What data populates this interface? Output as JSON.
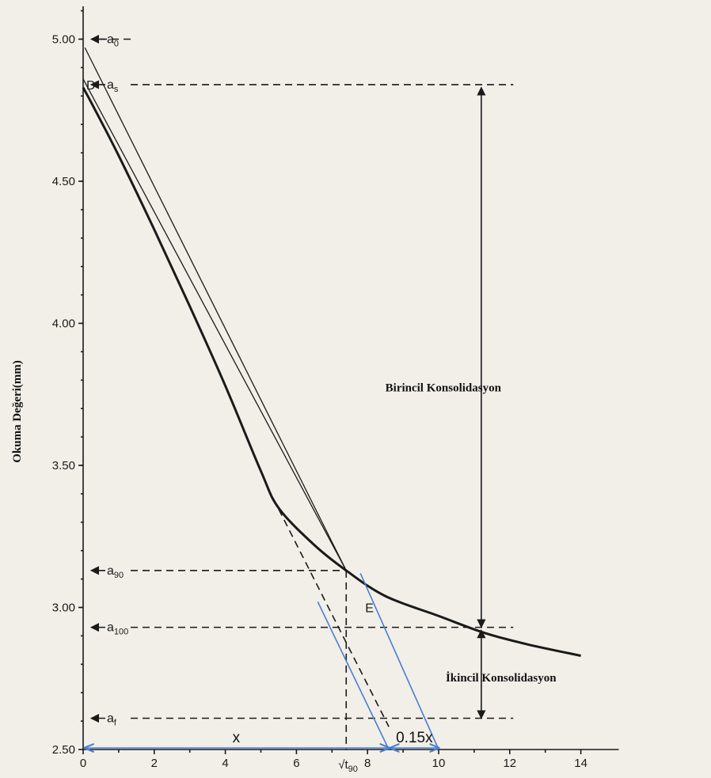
{
  "chart_data": {
    "type": "line",
    "ylabel": "Okuma Değeri(mm)",
    "xlabel": "",
    "xlim": [
      0,
      15
    ],
    "ylim": [
      2.5,
      5.2
    ],
    "x_ticks": [
      {
        "value": 0,
        "label": "0"
      },
      {
        "value": 2,
        "label": "2"
      },
      {
        "value": 4,
        "label": "4"
      },
      {
        "value": 6,
        "label": "6"
      },
      {
        "value": 8,
        "label": "8"
      },
      {
        "value": 10,
        "label": "10"
      },
      {
        "value": 12,
        "label": "12"
      },
      {
        "value": 14,
        "label": "14"
      }
    ],
    "y_ticks": [
      {
        "value": 2.5,
        "label": "2.50"
      },
      {
        "value": 3.0,
        "label": "3.00"
      },
      {
        "value": 3.5,
        "label": "3.50"
      },
      {
        "value": 4.0,
        "label": "4.00"
      },
      {
        "value": 4.5,
        "label": "4.50"
      },
      {
        "value": 5.0,
        "label": "5.00"
      }
    ],
    "curve": {
      "x": [
        0,
        0.3,
        1.0,
        2.0,
        3.0,
        4.0,
        5.0,
        5.5,
        6.5,
        7.4,
        8.5,
        10.0,
        11.3,
        12.5,
        14.0
      ],
      "y": [
        4.83,
        4.76,
        4.59,
        4.33,
        4.06,
        3.78,
        3.48,
        3.35,
        3.22,
        3.13,
        3.04,
        2.97,
        2.91,
        2.87,
        2.83
      ]
    },
    "tangent_line": {
      "x": [
        0,
        7.4
      ],
      "y": [
        4.86,
        3.13
      ]
    },
    "secant_line": {
      "x": [
        0.05,
        7.4
      ],
      "y": [
        4.97,
        3.13
      ]
    },
    "dashed_extension": {
      "x": [
        5.2,
        8.6
      ],
      "y": [
        3.42,
        2.58
      ]
    },
    "markers": [
      {
        "id": "a0",
        "label": "a",
        "sub": "0",
        "y": 5.0
      },
      {
        "id": "as",
        "label": "a",
        "sub": "s",
        "y": 4.84
      },
      {
        "id": "a90",
        "label": "a",
        "sub": "90",
        "y": 3.13
      },
      {
        "id": "a100",
        "label": "a",
        "sub": "100",
        "y": 2.93
      },
      {
        "id": "af",
        "label": "a",
        "sub": "f",
        "y": 2.61
      }
    ],
    "point_labels": [
      {
        "id": "D",
        "text": "D"
      },
      {
        "id": "E",
        "text": "E"
      }
    ],
    "sqrt_t90": {
      "x": 7.4,
      "label": "√t",
      "sub": "90"
    },
    "regions": {
      "primary": "Birincil Konsolidasyon",
      "secondary": "İkincil Konsolidasyon"
    },
    "construction": {
      "x_label": "x",
      "x_end": 8.6,
      "extra_label": "0.15x",
      "extra_end": 10.0
    },
    "colors": {
      "ink": "#1a1a1a",
      "construction": "#4a7fd0",
      "paper": "#f1efe8"
    }
  }
}
